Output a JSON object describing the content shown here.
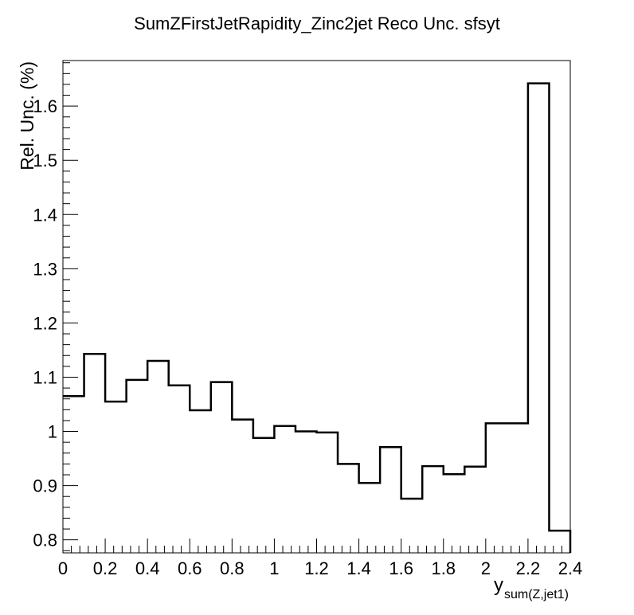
{
  "chart_data": {
    "type": "histogram",
    "title": "SumZFirstJetRapidity_Zinc2jet Reco Unc. sfsyt",
    "xlabel_main": "y",
    "xlabel_sub": "sum(Z,jet1)",
    "ylabel": "Rel. Unc. (%)",
    "xlim": [
      0,
      2.4
    ],
    "ylim": [
      0.776,
      1.684
    ],
    "x_ticks": [
      0,
      0.2,
      0.4,
      0.6,
      0.8,
      1,
      1.2,
      1.4,
      1.6,
      1.8,
      2,
      2.2,
      2.4
    ],
    "x_tick_labels": [
      "0",
      "0.2",
      "0.4",
      "0.6",
      "0.8",
      "1",
      "1.2",
      "1.4",
      "1.6",
      "1.8",
      "2",
      "2.2",
      "2.4"
    ],
    "y_ticks": [
      0.8,
      0.9,
      1.0,
      1.1,
      1.2,
      1.3,
      1.4,
      1.5,
      1.6
    ],
    "y_tick_labels": [
      "0.8",
      "0.9",
      "1",
      "1.1",
      "1.2",
      "1.3",
      "1.4",
      "1.5",
      "1.6"
    ],
    "bin_edges": [
      0,
      0.1,
      0.2,
      0.3,
      0.4,
      0.5,
      0.6,
      0.7,
      0.8,
      0.9,
      1.0,
      1.1,
      1.2,
      1.3,
      1.4,
      1.5,
      1.6,
      1.7,
      1.8,
      1.9,
      2.0,
      2.2,
      2.3,
      2.4
    ],
    "values": [
      1.065,
      1.143,
      1.055,
      1.095,
      1.13,
      1.085,
      1.039,
      1.091,
      1.022,
      0.988,
      1.01,
      1.0,
      0.998,
      0.94,
      0.905,
      0.971,
      0.876,
      0.936,
      0.921,
      0.935,
      1.015,
      1.642,
      0.817
    ],
    "grid": false,
    "legend": "none"
  }
}
